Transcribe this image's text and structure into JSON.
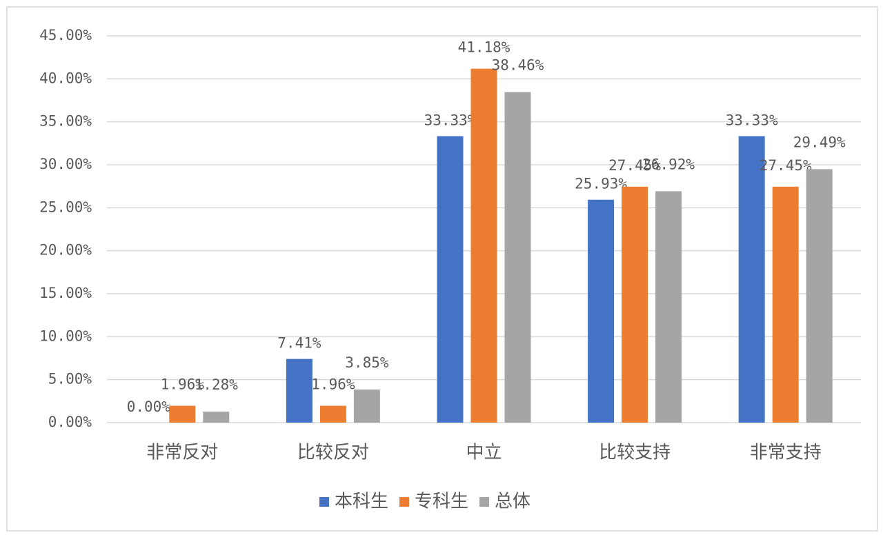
{
  "chart_data": {
    "type": "bar",
    "categories": [
      "非常反对",
      "比较反对",
      "中立",
      "比较支持",
      "非常支持"
    ],
    "series": [
      {
        "name": "本科生",
        "color": "#4472c4",
        "values": [
          0,
          7.41,
          33.33,
          25.93,
          33.33
        ],
        "value_labels": [
          "0.00%",
          "7.41%",
          "33.33%",
          "25.93%",
          "33.33%"
        ]
      },
      {
        "name": "专科生",
        "color": "#ed7d31",
        "values": [
          1.96,
          1.96,
          41.18,
          27.45,
          27.45
        ],
        "value_labels": [
          "1.96%",
          "1.96%",
          "41.18%",
          "27.45%",
          "27.45%"
        ]
      },
      {
        "name": "总体",
        "color": "#a5a5a5",
        "values": [
          1.28,
          3.85,
          38.46,
          26.92,
          29.49
        ],
        "value_labels": [
          "1.28%",
          "3.85%",
          "38.46%",
          "26.92%",
          "29.49%"
        ]
      }
    ],
    "ylim": [
      0,
      45
    ],
    "yticks": [
      {
        "value": 0,
        "label": "0.00%"
      },
      {
        "value": 5,
        "label": "5.00%"
      },
      {
        "value": 10,
        "label": "10.00%"
      },
      {
        "value": 15,
        "label": "15.00%"
      },
      {
        "value": 20,
        "label": "20.00%"
      },
      {
        "value": 25,
        "label": "25.00%"
      },
      {
        "value": 30,
        "label": "30.00%"
      },
      {
        "value": 35,
        "label": "35.00%"
      },
      {
        "value": 40,
        "label": "40.00%"
      },
      {
        "value": 45,
        "label": "45.00%"
      }
    ],
    "grid": true,
    "legend": "bottom"
  }
}
